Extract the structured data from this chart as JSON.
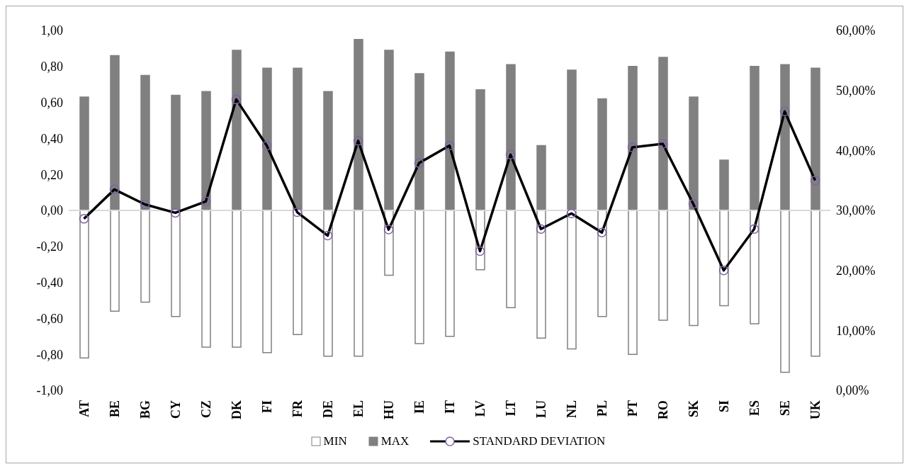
{
  "chart_data": {
    "type": "bar",
    "categories": [
      "AT",
      "BE",
      "BG",
      "CY",
      "CZ",
      "DK",
      "FI",
      "FR",
      "DE",
      "EL",
      "HU",
      "IE",
      "IT",
      "LV",
      "LT",
      "LU",
      "NL",
      "PL",
      "PT",
      "RO",
      "SK",
      "SI",
      "ES",
      "SE",
      "UK"
    ],
    "series": [
      {
        "name": "MIN",
        "color": "#ffffff",
        "values": [
          -0.82,
          -0.56,
          -0.51,
          -0.59,
          -0.76,
          -0.76,
          -0.79,
          -0.69,
          -0.81,
          -0.81,
          -0.36,
          -0.74,
          -0.7,
          -0.33,
          -0.54,
          -0.71,
          -0.77,
          -0.59,
          -0.8,
          -0.61,
          -0.64,
          -0.53,
          -0.63,
          -0.9,
          -0.81
        ]
      },
      {
        "name": "MAX",
        "color": "#808080",
        "values": [
          0.63,
          0.86,
          0.75,
          0.64,
          0.66,
          0.89,
          0.79,
          0.79,
          0.66,
          0.95,
          0.89,
          0.76,
          0.88,
          0.67,
          0.81,
          0.36,
          0.78,
          0.62,
          0.8,
          0.85,
          0.63,
          0.28,
          0.8,
          0.81,
          0.79
        ]
      },
      {
        "name": "STANDARD DEVIATION",
        "type": "line",
        "axis": "y2",
        "color": "#000000",
        "marker": "circle",
        "values": [
          28.6,
          33.5,
          31.0,
          29.6,
          31.5,
          48.5,
          40.8,
          29.7,
          25.8,
          41.6,
          26.8,
          37.9,
          40.8,
          23.2,
          39.3,
          26.9,
          29.5,
          26.3,
          40.5,
          41.1,
          31.1,
          20.0,
          26.9,
          46.5,
          35.0
        ]
      }
    ],
    "ylim": [
      -1,
      1
    ],
    "yticks": [
      {
        "value": -1,
        "label": "-1,00"
      },
      {
        "value": -0.8,
        "label": "-0,80"
      },
      {
        "value": -0.6,
        "label": "-0,60"
      },
      {
        "value": -0.4,
        "label": "-0,40"
      },
      {
        "value": -0.2,
        "label": "-0,20"
      },
      {
        "value": 0,
        "label": "0,00"
      },
      {
        "value": 0.2,
        "label": "0,20"
      },
      {
        "value": 0.4,
        "label": "0,40"
      },
      {
        "value": 0.6,
        "label": "0,60"
      },
      {
        "value": 0.8,
        "label": "0,80"
      },
      {
        "value": 1,
        "label": "1,00"
      }
    ],
    "y2lim": [
      0,
      60
    ],
    "y2ticks": [
      {
        "value": 0,
        "label": "0,00%"
      },
      {
        "value": 10,
        "label": "10,00%"
      },
      {
        "value": 20,
        "label": "20,00%"
      },
      {
        "value": 30,
        "label": "30,00%"
      },
      {
        "value": 40,
        "label": "40,00%"
      },
      {
        "value": 50,
        "label": "50,00%"
      },
      {
        "value": 60,
        "label": "60,00%"
      }
    ],
    "ref_lines": [
      {
        "axis": "y",
        "value": 0,
        "color": "#d9d9d9"
      }
    ],
    "stacked": true,
    "legend": "bottom"
  }
}
